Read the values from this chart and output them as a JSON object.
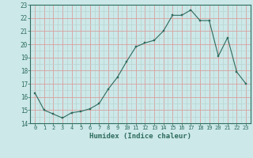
{
  "x": [
    0,
    1,
    2,
    3,
    4,
    5,
    6,
    7,
    8,
    9,
    10,
    11,
    12,
    13,
    14,
    15,
    16,
    17,
    18,
    19,
    20,
    21,
    22,
    23
  ],
  "y": [
    16.3,
    15.0,
    14.7,
    14.4,
    14.8,
    14.9,
    15.1,
    15.5,
    16.6,
    17.5,
    18.7,
    19.8,
    20.1,
    20.3,
    21.0,
    22.2,
    22.2,
    22.6,
    21.8,
    21.8,
    19.1,
    20.5,
    17.9,
    17.0
  ],
  "xlabel": "Humidex (Indice chaleur)",
  "xlim": [
    -0.5,
    23.5
  ],
  "ylim": [
    14,
    23
  ],
  "yticks": [
    14,
    15,
    16,
    17,
    18,
    19,
    20,
    21,
    22,
    23
  ],
  "xticks": [
    0,
    1,
    2,
    3,
    4,
    5,
    6,
    7,
    8,
    9,
    10,
    11,
    12,
    13,
    14,
    15,
    16,
    17,
    18,
    19,
    20,
    21,
    22,
    23
  ],
  "line_color": "#2d6b5e",
  "marker_color": "#2d6b5e",
  "bg_color": "#cce8e8",
  "major_grid_color": "#d8a0a0",
  "minor_grid_color": "#b8d4d0",
  "label_color": "#2d6b5e"
}
